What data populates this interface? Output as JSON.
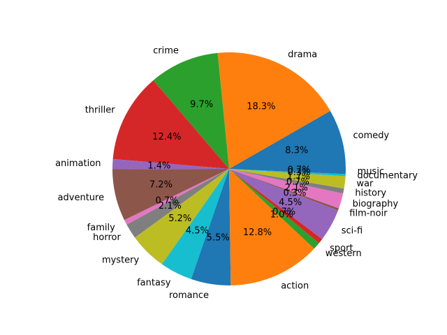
{
  "chart_data": {
    "type": "pie",
    "start_angle_deg": 0,
    "direction": "counterclockwise",
    "slices": [
      {
        "label": "comedy",
        "value": 8.3,
        "pct_text": "8.3%",
        "color": "#1f77b4"
      },
      {
        "label": "drama",
        "value": 18.3,
        "pct_text": "18.3%",
        "color": "#ff7f0e"
      },
      {
        "label": "crime",
        "value": 9.7,
        "pct_text": "9.7%",
        "color": "#2ca02c"
      },
      {
        "label": "thriller",
        "value": 12.4,
        "pct_text": "12.4%",
        "color": "#d62728"
      },
      {
        "label": "animation",
        "value": 1.4,
        "pct_text": "1.4%",
        "color": "#9467bd"
      },
      {
        "label": "adventure",
        "value": 7.2,
        "pct_text": "7.2%",
        "color": "#8c564b"
      },
      {
        "label": "family",
        "value": 0.7,
        "pct_text": "0.7%",
        "color": "#e377c2"
      },
      {
        "label": "horror",
        "value": 2.1,
        "pct_text": "2.1%",
        "color": "#7f7f7f"
      },
      {
        "label": "mystery",
        "value": 5.2,
        "pct_text": "5.2%",
        "color": "#bcbd22"
      },
      {
        "label": "fantasy",
        "value": 4.5,
        "pct_text": "4.5%",
        "color": "#17becf"
      },
      {
        "label": "romance",
        "value": 5.5,
        "pct_text": "5.5%",
        "color": "#1f77b4"
      },
      {
        "label": "action",
        "value": 12.8,
        "pct_text": "12.8%",
        "color": "#ff7f0e"
      },
      {
        "label": "western",
        "value": 1.0,
        "pct_text": "1.0%",
        "color": "#2ca02c"
      },
      {
        "label": "sport",
        "value": 0.7,
        "pct_text": "0.7%",
        "color": "#d62728"
      },
      {
        "label": "sci-fi",
        "value": 4.5,
        "pct_text": "4.5%",
        "color": "#9467bd"
      },
      {
        "label": "film-noir",
        "value": 0.3,
        "pct_text": "0.3%",
        "color": "#8c564b"
      },
      {
        "label": "biography",
        "value": 2.1,
        "pct_text": "2.1%",
        "color": "#e377c2"
      },
      {
        "label": "history",
        "value": 0.7,
        "pct_text": "0.7%",
        "color": "#7f7f7f"
      },
      {
        "label": "war",
        "value": 1.7,
        "pct_text": "1.7%",
        "color": "#bcbd22"
      },
      {
        "label": "documentary",
        "value": 0.3,
        "pct_text": "0.3%",
        "color": "#17becf"
      },
      {
        "label": "music",
        "value": 0.7,
        "pct_text": "0.7%",
        "color": "#1f77b4"
      }
    ]
  }
}
